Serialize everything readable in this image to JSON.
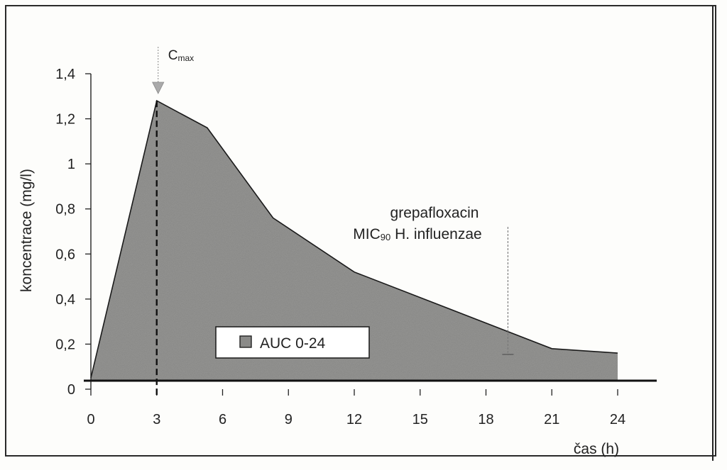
{
  "chart_data": {
    "type": "area",
    "ylabel": "koncentrace (mg/l)",
    "xlabel": "čas (h)",
    "x_ticks": [
      "0",
      "3",
      "6",
      "9",
      "12",
      "15",
      "18",
      "21",
      "24"
    ],
    "y_ticks": [
      "0",
      "0,2",
      "0,4",
      "0,6",
      "0,8",
      "1",
      "1,2",
      "1,4"
    ],
    "xlim": [
      0,
      24
    ],
    "ylim": [
      0,
      1.4
    ],
    "series": [
      {
        "x": [
          0,
          3,
          5.3,
          8.3,
          12,
          21,
          24
        ],
        "y": [
          0.05,
          1.28,
          1.16,
          0.76,
          0.52,
          0.18,
          0.16
        ]
      }
    ],
    "legend": {
      "label": "AUC 0-24",
      "position": "bottom-center"
    },
    "annotations": {
      "cmax": {
        "main": "C",
        "sub": "max",
        "x": 3
      },
      "mic": {
        "line1": "grepafloxacin",
        "line2_main": "MIC",
        "line2_sub": "90",
        "line2_rest": " H. influenzae",
        "x": 19
      }
    },
    "colors": {
      "area": "#9a9a98",
      "line": "#1a1a1a",
      "frame": "#2a2a2a"
    }
  }
}
